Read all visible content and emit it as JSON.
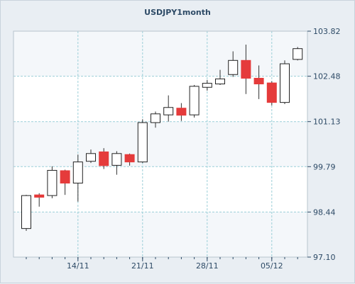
{
  "chart_data": {
    "type": "candlestick",
    "title": "USDJPY1month",
    "xlabel": "",
    "ylabel": "",
    "ylim": [
      97.1,
      103.82
    ],
    "y_ticks": [
      "97.10",
      "98.44",
      "99.79",
      "101.13",
      "102.48",
      "103.82"
    ],
    "x_ticks": [
      {
        "label": "14/11",
        "index": 4
      },
      {
        "label": "21/11",
        "index": 9
      },
      {
        "label": "28/11",
        "index": 14
      },
      {
        "label": "05/12",
        "index": 19
      }
    ],
    "grid": true,
    "up_color": "#ffffff",
    "down_color": "#e53b3b",
    "band_color": "#ffffff",
    "plot_background": "#f4f7fa",
    "candles": [
      {
        "open": 97.95,
        "high": 98.95,
        "low": 97.88,
        "close": 98.93
      },
      {
        "open": 98.95,
        "high": 99.0,
        "low": 98.6,
        "close": 98.88
      },
      {
        "open": 98.93,
        "high": 99.8,
        "low": 98.85,
        "close": 99.68
      },
      {
        "open": 99.67,
        "high": 99.7,
        "low": 98.95,
        "close": 99.3
      },
      {
        "open": 99.3,
        "high": 100.15,
        "low": 98.75,
        "close": 99.93
      },
      {
        "open": 99.95,
        "high": 100.3,
        "low": 99.9,
        "close": 100.18
      },
      {
        "open": 100.23,
        "high": 100.34,
        "low": 99.72,
        "close": 99.82
      },
      {
        "open": 99.83,
        "high": 100.25,
        "low": 99.55,
        "close": 100.18
      },
      {
        "open": 100.15,
        "high": 100.18,
        "low": 99.82,
        "close": 99.93
      },
      {
        "open": 99.93,
        "high": 101.2,
        "low": 99.9,
        "close": 101.1
      },
      {
        "open": 101.1,
        "high": 101.43,
        "low": 100.95,
        "close": 101.36
      },
      {
        "open": 101.33,
        "high": 101.91,
        "low": 101.13,
        "close": 101.55
      },
      {
        "open": 101.53,
        "high": 101.68,
        "low": 101.15,
        "close": 101.32
      },
      {
        "open": 101.33,
        "high": 102.22,
        "low": 101.25,
        "close": 102.18
      },
      {
        "open": 102.15,
        "high": 102.37,
        "low": 102.05,
        "close": 102.27
      },
      {
        "open": 102.25,
        "high": 102.67,
        "low": 102.22,
        "close": 102.4
      },
      {
        "open": 102.53,
        "high": 103.22,
        "low": 102.46,
        "close": 102.95
      },
      {
        "open": 102.95,
        "high": 103.42,
        "low": 101.95,
        "close": 102.42
      },
      {
        "open": 102.42,
        "high": 102.8,
        "low": 101.8,
        "close": 102.25
      },
      {
        "open": 102.28,
        "high": 102.33,
        "low": 101.61,
        "close": 101.7
      },
      {
        "open": 101.7,
        "high": 102.95,
        "low": 101.65,
        "close": 102.85
      },
      {
        "open": 102.98,
        "high": 103.35,
        "low": 102.95,
        "close": 103.3
      }
    ]
  }
}
